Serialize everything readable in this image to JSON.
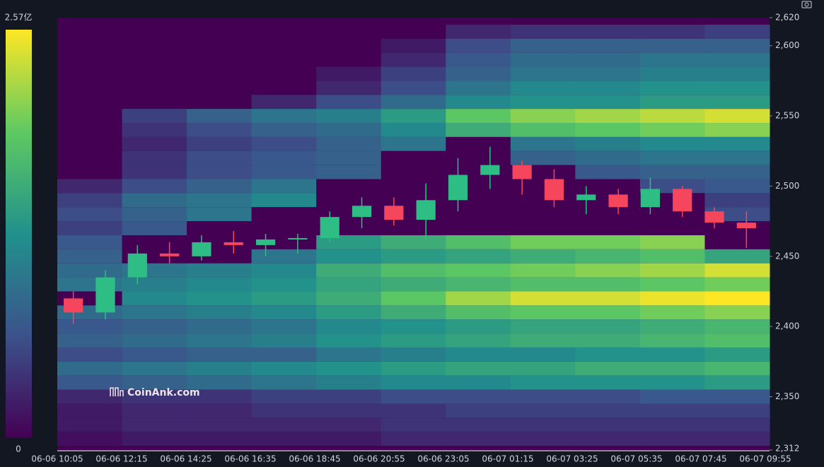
{
  "chart_data": {
    "type": "heatmap",
    "watermark": "CoinAnk.com",
    "categories": [
      "06-06 10:05",
      "06-06 12:15",
      "06-06 14:25",
      "06-06 16:35",
      "06-06 18:45",
      "06-06 20:55",
      "06-06 23:05",
      "06-07 01:15",
      "06-07 03:25",
      "06-07 05:35",
      "06-07 07:45",
      "06-07 09:55"
    ],
    "ylim": [
      2312,
      2620
    ],
    "yticks": [
      {
        "value": 2312,
        "label": "2,312"
      },
      {
        "value": 2350,
        "label": "2,350"
      },
      {
        "value": 2400,
        "label": "2,400"
      },
      {
        "value": 2450,
        "label": "2,450"
      },
      {
        "value": 2500,
        "label": "2,500"
      },
      {
        "value": 2550,
        "label": "2,550"
      },
      {
        "value": 2600,
        "label": "2,600"
      },
      {
        "value": 2620,
        "label": "2,620"
      }
    ],
    "colorbar": {
      "clim": [
        0,
        2.57
      ],
      "ticks": [
        {
          "value": 2.57,
          "label": "2.57亿"
        },
        0
      ],
      "colors": [
        "#440154",
        "#3b528b",
        "#21918c",
        "#5ec962",
        "#fde725"
      ]
    },
    "heatmap": {
      "levels": [
        2610,
        2600,
        2590,
        2580,
        2570,
        2560,
        2550,
        2540,
        2530,
        2520,
        2510,
        2500,
        2490,
        2480,
        2470,
        2460,
        2450,
        2440,
        2430,
        2420,
        2410,
        2400,
        2390,
        2380,
        2370,
        2360,
        2350,
        2340,
        2330,
        2320
      ],
      "values": [
        [
          0,
          0,
          0,
          0,
          0,
          0,
          0.3,
          0.4,
          0.4,
          0.4,
          0.5
        ],
        [
          0,
          0,
          0,
          0,
          0,
          0.2,
          0.6,
          0.8,
          0.8,
          0.8,
          0.8
        ],
        [
          0,
          0,
          0,
          0,
          0,
          0.3,
          0.7,
          0.9,
          0.9,
          1.0,
          1.0
        ],
        [
          0,
          0,
          0,
          0,
          0.2,
          0.5,
          0.8,
          1.0,
          1.0,
          1.1,
          1.1
        ],
        [
          0,
          0,
          0,
          0,
          0.3,
          0.6,
          1.0,
          1.2,
          1.2,
          1.3,
          1.3
        ],
        [
          0,
          0,
          0,
          0.3,
          0.6,
          0.9,
          1.2,
          1.3,
          1.3,
          1.4,
          1.4
        ],
        [
          0,
          0.5,
          0.8,
          1.0,
          1.1,
          1.4,
          1.9,
          2.1,
          2.2,
          2.3,
          2.4
        ],
        [
          0,
          0.4,
          0.6,
          0.8,
          0.9,
          1.2,
          1.6,
          1.8,
          1.9,
          2.0,
          2.1
        ],
        [
          0,
          0.3,
          0.5,
          0.6,
          0.8,
          1.0,
          0,
          1.0,
          1.1,
          1.2,
          1.2
        ],
        [
          0,
          0.4,
          0.6,
          0.7,
          0.8,
          0,
          0,
          0.8,
          0.9,
          1.0,
          1.0
        ],
        [
          0,
          0.4,
          0.6,
          0.7,
          0.8,
          0,
          0,
          0,
          0.7,
          0.8,
          0.8
        ],
        [
          0.3,
          0.6,
          0.8,
          1.0,
          0,
          0,
          0,
          0,
          0,
          0.6,
          0.7
        ],
        [
          0.5,
          0.9,
          1.0,
          1.2,
          0,
          0,
          0,
          0,
          0,
          0,
          0.5
        ],
        [
          0.6,
          0.8,
          1.0,
          0,
          0,
          0,
          0,
          0,
          0,
          0,
          0.6
        ],
        [
          0.5,
          0.7,
          0,
          0,
          0,
          0,
          0,
          0,
          0,
          0,
          0
        ],
        [
          0.7,
          0,
          0,
          0,
          1.4,
          1.6,
          1.8,
          2.0,
          2.0,
          2.1,
          0
        ],
        [
          0.8,
          0,
          0,
          1.0,
          1.3,
          1.4,
          1.5,
          1.6,
          1.7,
          1.8,
          1.5
        ],
        [
          0.9,
          1.0,
          1.1,
          1.2,
          1.6,
          1.8,
          1.9,
          2.0,
          2.1,
          2.2,
          2.4
        ],
        [
          1.0,
          1.1,
          1.2,
          1.3,
          1.5,
          1.6,
          1.7,
          1.8,
          1.8,
          1.9,
          2.0
        ],
        [
          0,
          1.2,
          1.3,
          1.4,
          1.6,
          1.9,
          2.2,
          2.4,
          2.4,
          2.5,
          2.57
        ],
        [
          0.9,
          1.0,
          1.1,
          1.2,
          1.4,
          1.6,
          1.8,
          1.9,
          1.9,
          2.0,
          2.1
        ],
        [
          0.7,
          0.8,
          0.9,
          1.0,
          1.2,
          1.3,
          1.4,
          1.5,
          1.5,
          1.6,
          1.7
        ],
        [
          0.8,
          0.9,
          1.0,
          1.1,
          1.3,
          1.4,
          1.5,
          1.6,
          1.6,
          1.7,
          1.8
        ],
        [
          0.6,
          0.7,
          0.8,
          0.8,
          1.0,
          1.1,
          1.2,
          1.2,
          1.3,
          1.3,
          1.4
        ],
        [
          0.9,
          1.0,
          1.1,
          1.2,
          1.3,
          1.4,
          1.5,
          1.5,
          1.6,
          1.6,
          1.7
        ],
        [
          0.7,
          0.8,
          0.9,
          1.0,
          1.1,
          1.2,
          1.2,
          1.3,
          1.3,
          1.3,
          1.4
        ],
        [
          0.3,
          0.4,
          0.4,
          0.5,
          0.5,
          0.6,
          0.6,
          0.6,
          0.6,
          0.7,
          0.7
        ],
        [
          0.2,
          0.3,
          0.3,
          0.4,
          0.4,
          0.4,
          0.5,
          0.5,
          0.5,
          0.5,
          0.5
        ],
        [
          0.2,
          0.3,
          0.3,
          0.3,
          0.3,
          0.4,
          0.4,
          0.4,
          0.4,
          0.4,
          0.4
        ],
        [
          0.1,
          0.2,
          0.2,
          0.2,
          0.2,
          0.3,
          0.3,
          0.3,
          0.3,
          0.3,
          0.3
        ]
      ]
    },
    "candles": {
      "up_color": "#2ebd85",
      "down_color": "#f6465d",
      "open": [
        2420,
        2410,
        2435,
        2452,
        2450,
        2460,
        2458,
        2462,
        2463,
        2478,
        2486,
        2476,
        2490,
        2508,
        2515,
        2505,
        2490,
        2494,
        2485,
        2498,
        2482,
        2474
      ],
      "high": [
        2425,
        2440,
        2458,
        2460,
        2465,
        2468,
        2466,
        2466,
        2482,
        2492,
        2492,
        2502,
        2520,
        2528,
        2518,
        2512,
        2500,
        2498,
        2506,
        2500,
        2485,
        2482
      ],
      "low": [
        2402,
        2405,
        2430,
        2445,
        2447,
        2452,
        2450,
        2452,
        2460,
        2470,
        2472,
        2462,
        2482,
        2498,
        2494,
        2485,
        2480,
        2480,
        2480,
        2478,
        2470,
        2456
      ],
      "close": [
        2410,
        2435,
        2452,
        2450,
        2460,
        2458,
        2462,
        2463,
        2478,
        2486,
        2476,
        2490,
        2508,
        2515,
        2505,
        2490,
        2494,
        2485,
        2498,
        2482,
        2474,
        2470
      ]
    }
  }
}
